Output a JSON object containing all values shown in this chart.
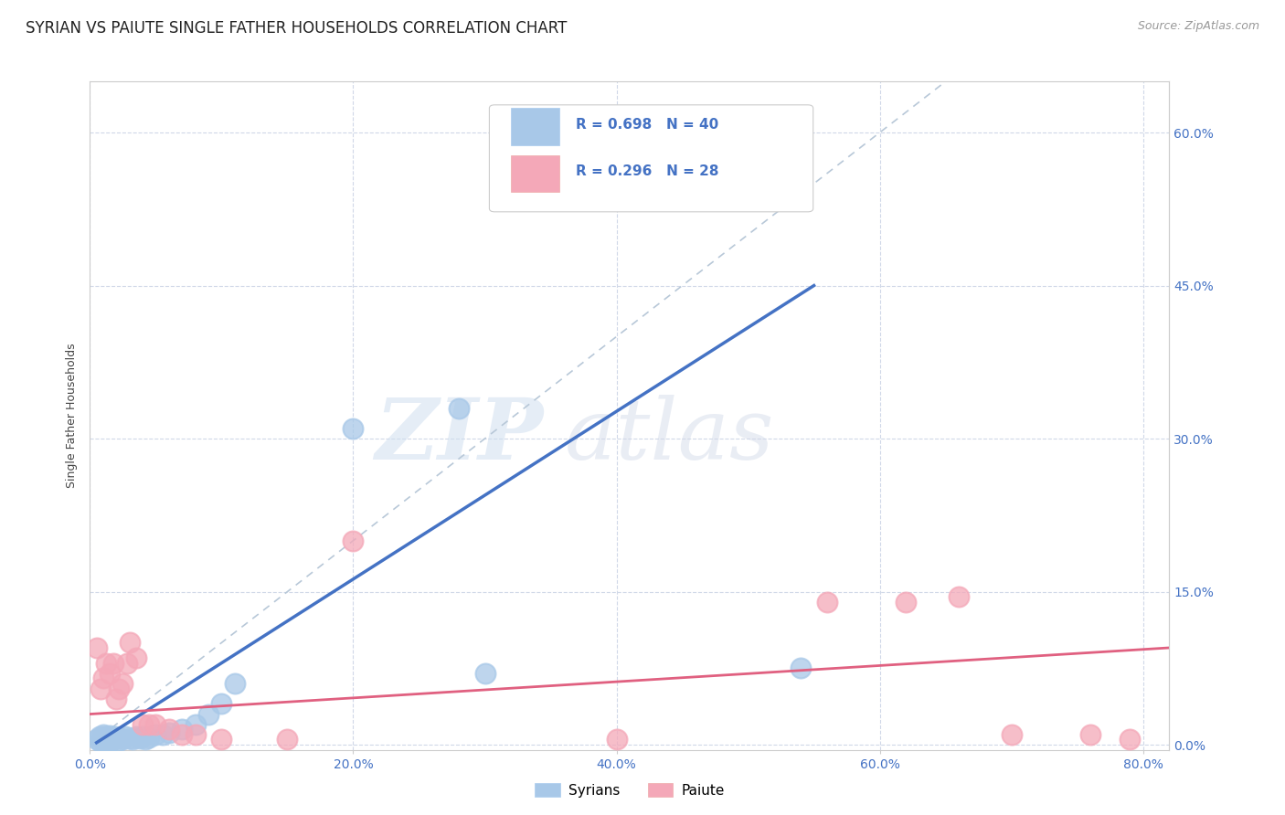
{
  "title": "SYRIAN VS PAIUTE SINGLE FATHER HOUSEHOLDS CORRELATION CHART",
  "source": "Source: ZipAtlas.com",
  "ylabel": "Single Father Households",
  "watermark_zip": "ZIP",
  "watermark_atlas": "atlas",
  "syrians_color": "#a8c8e8",
  "paiute_color": "#f4a8b8",
  "syrians_line_color": "#4472c4",
  "paiute_line_color": "#e06080",
  "diagonal_color": "#b8c8d8",
  "xlim": [
    0.0,
    0.82
  ],
  "ylim": [
    -0.005,
    0.65
  ],
  "xtick_vals": [
    0.0,
    0.2,
    0.4,
    0.6,
    0.8
  ],
  "ytick_vals": [
    0.0,
    0.15,
    0.3,
    0.45,
    0.6
  ],
  "xtick_labels": [
    "0.0%",
    "20.0%",
    "40.0%",
    "60.0%",
    "80.0%"
  ],
  "ytick_labels_right": [
    "0.0%",
    "15.0%",
    "30.0%",
    "45.0%",
    "60.0%"
  ],
  "background_color": "#ffffff",
  "grid_color": "#d0d8e8",
  "title_fontsize": 12,
  "axis_label_fontsize": 9,
  "tick_fontsize": 10,
  "tick_color": "#4472c4",
  "source_fontsize": 9,
  "legend_r1": "R = 0.698",
  "legend_n1": "N = 40",
  "legend_r2": "R = 0.296",
  "legend_n2": "N = 28",
  "syrians_x": [
    0.005,
    0.007,
    0.008,
    0.009,
    0.01,
    0.01,
    0.011,
    0.012,
    0.013,
    0.014,
    0.015,
    0.015,
    0.016,
    0.017,
    0.018,
    0.019,
    0.02,
    0.021,
    0.022,
    0.025,
    0.027,
    0.03,
    0.032,
    0.035,
    0.038,
    0.04,
    0.042,
    0.045,
    0.05,
    0.055,
    0.06,
    0.07,
    0.08,
    0.09,
    0.1,
    0.11,
    0.2,
    0.3,
    0.28,
    0.54
  ],
  "syrians_y": [
    0.005,
    0.008,
    0.003,
    0.006,
    0.004,
    0.01,
    0.005,
    0.008,
    0.003,
    0.007,
    0.005,
    0.009,
    0.004,
    0.006,
    0.005,
    0.008,
    0.006,
    0.004,
    0.007,
    0.005,
    0.008,
    0.006,
    0.005,
    0.008,
    0.006,
    0.008,
    0.005,
    0.007,
    0.01,
    0.01,
    0.012,
    0.015,
    0.02,
    0.03,
    0.04,
    0.06,
    0.31,
    0.07,
    0.33,
    0.075
  ],
  "paiute_x": [
    0.005,
    0.008,
    0.01,
    0.012,
    0.015,
    0.018,
    0.02,
    0.022,
    0.025,
    0.028,
    0.03,
    0.035,
    0.04,
    0.045,
    0.05,
    0.06,
    0.07,
    0.08,
    0.1,
    0.15,
    0.2,
    0.4,
    0.56,
    0.62,
    0.66,
    0.7,
    0.76,
    0.79
  ],
  "paiute_y": [
    0.095,
    0.055,
    0.065,
    0.08,
    0.07,
    0.08,
    0.045,
    0.055,
    0.06,
    0.08,
    0.1,
    0.085,
    0.02,
    0.02,
    0.02,
    0.015,
    0.01,
    0.01,
    0.005,
    0.005,
    0.2,
    0.005,
    0.14,
    0.14,
    0.145,
    0.01,
    0.01,
    0.005
  ],
  "sy_line_x": [
    0.005,
    0.55
  ],
  "sy_line_y": [
    0.002,
    0.45
  ],
  "pa_line_x": [
    0.0,
    0.82
  ],
  "pa_line_y": [
    0.03,
    0.095
  ]
}
